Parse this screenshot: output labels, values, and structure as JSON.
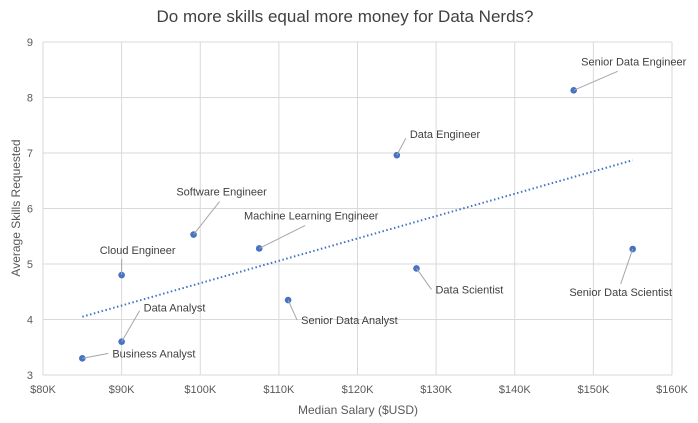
{
  "chart_data": {
    "type": "scatter",
    "title": "Do more skills equal more money for Data Nerds?",
    "xlabel": "Median Salary ($USD)",
    "ylabel": "Average Skills Requested",
    "xlim": [
      80000,
      160000
    ],
    "ylim": [
      3,
      9
    ],
    "x_ticks": [
      80000,
      90000,
      100000,
      110000,
      120000,
      130000,
      140000,
      150000,
      160000
    ],
    "x_tick_labels": [
      "$80K",
      "$90K",
      "$100K",
      "$110K",
      "$120K",
      "$130K",
      "$140K",
      "$150K",
      "$160K"
    ],
    "y_ticks": [
      3,
      4,
      5,
      6,
      7,
      8,
      9
    ],
    "y_tick_labels": [
      "3",
      "4",
      "5",
      "6",
      "7",
      "8",
      "9"
    ],
    "grid": true,
    "legend": "none",
    "point_color": "#4472C4",
    "trendline": {
      "type": "linear",
      "style": "dotted",
      "color": "#4472C4",
      "x": [
        85000,
        155000
      ],
      "y": [
        4.05,
        6.87
      ]
    },
    "points": [
      {
        "label": "Business Analyst",
        "x": 85000,
        "y": 3.3
      },
      {
        "label": "Data Analyst",
        "x": 90000,
        "y": 3.6
      },
      {
        "label": "Cloud Engineer",
        "x": 90000,
        "y": 4.8
      },
      {
        "label": "Software Engineer",
        "x": 99150,
        "y": 5.53
      },
      {
        "label": "Machine Learning Engineer",
        "x": 107500,
        "y": 5.28
      },
      {
        "label": "Senior Data Analyst",
        "x": 111175,
        "y": 4.35
      },
      {
        "label": "Data Engineer",
        "x": 125000,
        "y": 6.96
      },
      {
        "label": "Data Scientist",
        "x": 127500,
        "y": 4.92
      },
      {
        "label": "Senior Data Engineer",
        "x": 147500,
        "y": 8.13
      },
      {
        "label": "Senior Data Scientist",
        "x": 155000,
        "y": 5.27
      }
    ]
  }
}
